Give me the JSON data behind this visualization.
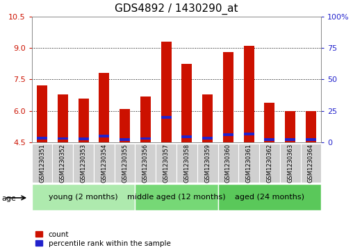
{
  "title": "GDS4892 / 1430290_at",
  "samples": [
    "GSM1230351",
    "GSM1230352",
    "GSM1230353",
    "GSM1230354",
    "GSM1230355",
    "GSM1230356",
    "GSM1230357",
    "GSM1230358",
    "GSM1230359",
    "GSM1230360",
    "GSM1230361",
    "GSM1230362",
    "GSM1230363",
    "GSM1230364"
  ],
  "count_values": [
    7.2,
    6.8,
    6.6,
    7.8,
    6.1,
    6.7,
    9.3,
    8.25,
    6.8,
    8.8,
    9.1,
    6.4,
    6.0,
    6.0
  ],
  "percentile_values": [
    4.65,
    4.62,
    4.61,
    4.73,
    4.56,
    4.62,
    5.62,
    4.71,
    4.65,
    4.8,
    4.82,
    4.57,
    4.56,
    4.56
  ],
  "ymin": 4.5,
  "ymax": 10.5,
  "yticks": [
    4.5,
    6.0,
    7.5,
    9.0,
    10.5
  ],
  "right_yticks_vals": [
    0,
    25,
    50,
    75,
    100
  ],
  "right_yticks_labels": [
    "0",
    "25",
    "50",
    "75",
    "100%"
  ],
  "groups": [
    {
      "label": "young (2 months)",
      "start": 0,
      "end": 5
    },
    {
      "label": "middle aged (12 months)",
      "start": 5,
      "end": 9
    },
    {
      "label": "aged (24 months)",
      "start": 9,
      "end": 14
    }
  ],
  "group_colors": [
    "#aeeaae",
    "#76d876",
    "#5ac85a"
  ],
  "bar_color_red": "#cc1100",
  "bar_color_blue": "#2222cc",
  "base_value": 4.5,
  "bar_width": 0.5,
  "tick_label_color": "#cc1100",
  "right_tick_color": "#2222cc",
  "group_label": "age",
  "legend_count": "count",
  "legend_percentile": "percentile rank within the sample",
  "title_fontsize": 11,
  "tick_fontsize": 8,
  "sample_fontsize": 6,
  "group_fontsize": 8
}
